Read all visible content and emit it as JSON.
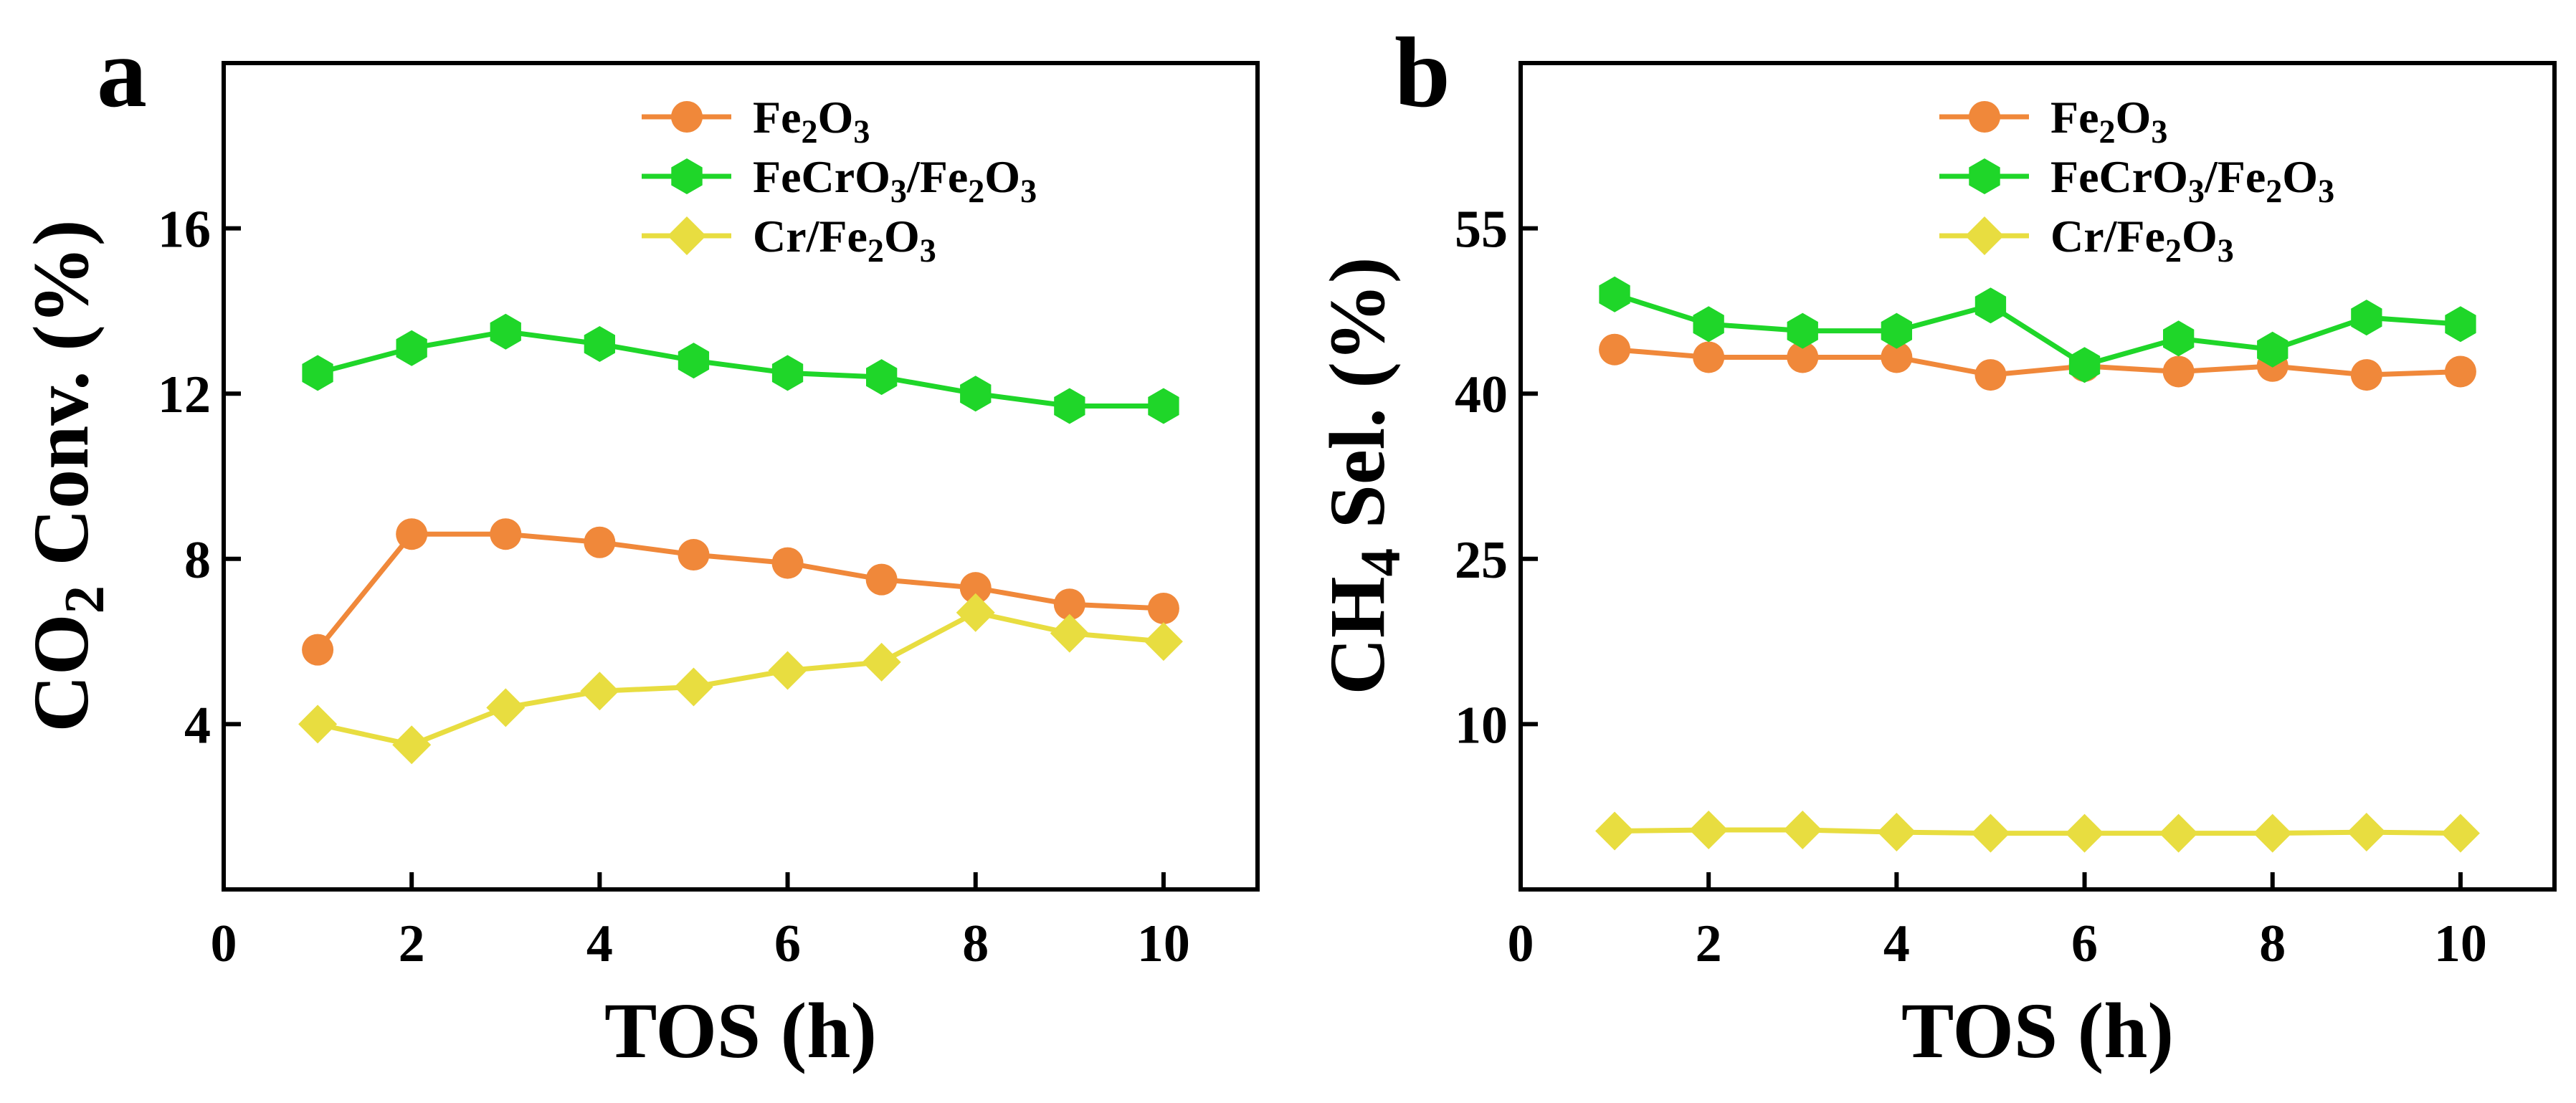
{
  "colors": {
    "Fe2O3": "#F0883A",
    "FeCrO3/Fe2O3": "#1FD629",
    "Cr/Fe2O3": "#E8DD40",
    "axis": "#000000"
  },
  "legend_text": {
    "Fe2O3": {
      "main": "Fe",
      "sub1": "2",
      "mid": "O",
      "sub2": "3"
    },
    "FeCrO3/Fe2O3": {
      "pre": "FeCrO",
      "sub1": "3",
      "mid": "/Fe",
      "sub2": "2",
      "mid2": "O",
      "sub3": "3"
    },
    "Cr/Fe2O3": {
      "pre": "Cr/Fe",
      "sub1": "2",
      "mid": "O",
      "sub2": "3"
    }
  },
  "chart_data": [
    {
      "type": "line",
      "panel": "a",
      "xlabel": "TOS (h)",
      "ylabel": {
        "pre": "CO",
        "sub": "2",
        "post": " Conv. (%)"
      },
      "xlim": [
        0,
        11
      ],
      "ylim": [
        0,
        20
      ],
      "xticks": [
        0,
        2,
        4,
        6,
        8,
        10
      ],
      "yticks": [
        4,
        8,
        12,
        16
      ],
      "legend_position": "top-right",
      "grid": false,
      "x": [
        1,
        2,
        3,
        4,
        5,
        6,
        7,
        8,
        9,
        10
      ],
      "series": [
        {
          "name": "Fe2O3",
          "marker": "circle",
          "values": [
            5.8,
            8.6,
            8.6,
            8.4,
            8.1,
            7.9,
            7.5,
            7.3,
            6.9,
            6.8
          ]
        },
        {
          "name": "FeCrO3/Fe2O3",
          "marker": "hexagon",
          "values": [
            12.5,
            13.1,
            13.5,
            13.2,
            12.8,
            12.5,
            12.4,
            12.0,
            11.7,
            11.7
          ]
        },
        {
          "name": "Cr/Fe2O3",
          "marker": "diamond",
          "values": [
            4.0,
            3.5,
            4.4,
            4.8,
            4.9,
            5.3,
            5.5,
            6.7,
            6.2,
            6.0
          ]
        }
      ]
    },
    {
      "type": "line",
      "panel": "b",
      "xlabel": "TOS (h)",
      "ylabel": {
        "pre": "CH",
        "sub": "4",
        "post": " Sel. (%)"
      },
      "xlim": [
        0,
        11
      ],
      "ylim": [
        -5,
        70
      ],
      "xticks": [
        0,
        2,
        4,
        6,
        8,
        10
      ],
      "yticks": [
        10,
        25,
        40,
        55
      ],
      "legend_position": "top-right",
      "grid": false,
      "x": [
        1,
        2,
        3,
        4,
        5,
        6,
        7,
        8,
        9,
        10
      ],
      "series": [
        {
          "name": "Fe2O3",
          "marker": "circle",
          "values": [
            44.0,
            43.3,
            43.3,
            43.3,
            41.7,
            42.5,
            42.0,
            42.5,
            41.7,
            42.0
          ]
        },
        {
          "name": "FeCrO3/Fe2O3",
          "marker": "hexagon",
          "values": [
            49.0,
            46.3,
            45.7,
            45.7,
            48.0,
            42.6,
            45.0,
            44.0,
            46.9,
            46.3
          ]
        },
        {
          "name": "Cr/Fe2O3",
          "marker": "diamond",
          "values": [
            0.3,
            0.4,
            0.4,
            0.2,
            0.1,
            0.1,
            0.1,
            0.1,
            0.2,
            0.1
          ]
        }
      ]
    }
  ]
}
